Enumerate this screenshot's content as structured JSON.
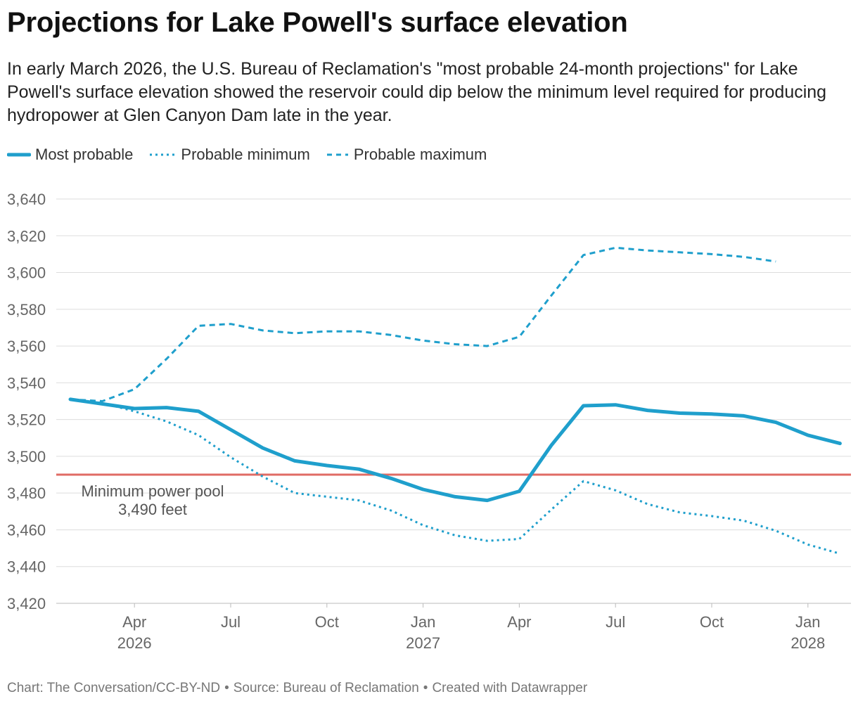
{
  "title": "Projections for Lake Powell's surface elevation",
  "subtitle": "In early March 2026, the U.S. Bureau of Reclamation's \"most probable 24-month projections\" for Lake Powell's surface elevation showed the reservoir could dip below the minimum level required for producing hydropower at Glen Canyon Dam late in the year.",
  "legend": [
    {
      "label": "Most probable",
      "style": "solid"
    },
    {
      "label": "Probable minimum",
      "style": "dotted"
    },
    {
      "label": "Probable maximum",
      "style": "dashed"
    }
  ],
  "colors": {
    "series": "#1f9fcc",
    "threshold": "#e06b64",
    "grid": "#dddddd",
    "axis_text": "#666666"
  },
  "footer": {
    "chart": "Chart: The Conversation/CC-BY-ND",
    "source": "Source: Bureau of Reclamation",
    "created": "Created with Datawrapper"
  },
  "chart_data": {
    "type": "line",
    "title": "Projections for Lake Powell's surface elevation",
    "xlabel": "",
    "ylabel": "",
    "ylim": [
      3420,
      3640
    ],
    "yticks": [
      3420,
      3440,
      3460,
      3480,
      3500,
      3520,
      3540,
      3560,
      3580,
      3600,
      3620,
      3640
    ],
    "grid": true,
    "legend_position": "top-left",
    "x": [
      "2026-02",
      "2026-03",
      "2026-04",
      "2026-05",
      "2026-06",
      "2026-07",
      "2026-08",
      "2026-09",
      "2026-10",
      "2026-11",
      "2026-12",
      "2027-01",
      "2027-02",
      "2027-03",
      "2027-04",
      "2027-05",
      "2027-06",
      "2027-07",
      "2027-08",
      "2027-09",
      "2027-10",
      "2027-11",
      "2027-12",
      "2028-01",
      "2028-02"
    ],
    "xticks": [
      {
        "label": "Apr",
        "year": "2026",
        "date": "2026-04"
      },
      {
        "label": "Jul",
        "year": "",
        "date": "2026-07"
      },
      {
        "label": "Oct",
        "year": "",
        "date": "2026-10"
      },
      {
        "label": "Jan",
        "year": "2027",
        "date": "2027-01"
      },
      {
        "label": "Apr",
        "year": "",
        "date": "2027-04"
      },
      {
        "label": "Jul",
        "year": "",
        "date": "2027-07"
      },
      {
        "label": "Oct",
        "year": "",
        "date": "2027-10"
      },
      {
        "label": "Jan",
        "year": "2028",
        "date": "2028-01"
      }
    ],
    "series": [
      {
        "name": "Most probable",
        "style": "solid",
        "values": [
          3531,
          3528.5,
          3526,
          3526.5,
          3524.5,
          3514.5,
          3504.5,
          3497.5,
          3495,
          3493,
          3488,
          3482,
          3478,
          3476,
          3481,
          3506,
          3527.5,
          3528,
          3525,
          3523.5,
          3523,
          3522,
          3518.5,
          3511.5,
          3507
        ]
      },
      {
        "name": "Probable minimum",
        "style": "dotted",
        "values": [
          3531,
          3529,
          3524.5,
          3519,
          3511.5,
          3499.5,
          3489,
          3480,
          3478,
          3476,
          3470.5,
          3462.5,
          3457,
          3454,
          3455,
          3471,
          3486.5,
          3481.5,
          3474,
          3469.5,
          3467.5,
          3465,
          3459.5,
          3452,
          3447
        ]
      },
      {
        "name": "Probable maximum",
        "style": "dashed",
        "values": [
          3531,
          3530,
          3536.5,
          3553,
          3571,
          3572,
          3568.5,
          3567,
          3568,
          3568,
          3566,
          3563,
          3561,
          3560,
          3565,
          3587.5,
          3609.5,
          3613.5,
          3612,
          3611,
          3610,
          3608.5,
          3606,
          null,
          null
        ]
      }
    ],
    "annotations": [
      {
        "type": "hline",
        "y": 3490,
        "label": "Minimum power pool",
        "sublabel": "3,490 feet"
      }
    ]
  }
}
